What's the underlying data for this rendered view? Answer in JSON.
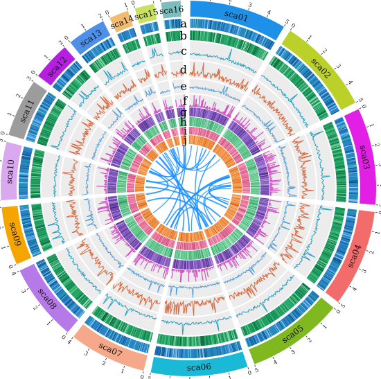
{
  "segments": [
    {
      "name": "sca01",
      "color": "#1E90E8",
      "max": 5
    },
    {
      "name": "sca02",
      "color": "#BCD02A",
      "max": 5
    },
    {
      "name": "sca03",
      "color": "#E21FE5",
      "max": 5
    },
    {
      "name": "sca04",
      "color": "#F26C6C",
      "max": 5
    },
    {
      "name": "sca05",
      "color": "#7FB81F",
      "max": 5
    },
    {
      "name": "sca06",
      "color": "#1AB9D6",
      "max": 5
    },
    {
      "name": "sca07",
      "color": "#F5A98A",
      "max": 4
    },
    {
      "name": "sca08",
      "color": "#B57AE8",
      "max": 4
    },
    {
      "name": "sca09",
      "color": "#F5A500",
      "max": 3
    },
    {
      "name": "sca10",
      "color": "#D9A8EE",
      "max": 3
    },
    {
      "name": "sca11",
      "color": "#9C9C9C",
      "max": 3
    },
    {
      "name": "sca12",
      "color": "#B51FE0",
      "max": 2
    },
    {
      "name": "sca13",
      "color": "#4E8FE8",
      "max": 2
    },
    {
      "name": "sca14",
      "color": "#F3BB6E",
      "max": 1
    },
    {
      "name": "sca15",
      "color": "#C9E060",
      "max": 1
    },
    {
      "name": "sca16",
      "color": "#7DBDBD",
      "max": 1
    }
  ],
  "track_letters": [
    "a",
    "b",
    "c",
    "d",
    "e",
    "f",
    "g",
    "h",
    "i",
    "j"
  ],
  "track_colors": {
    "a": "#1E8BC3",
    "b": "#21A366",
    "c": "#2A9FC1",
    "d": "#D6693F",
    "e": "#8B3FA8",
    "f": "#D054C4",
    "g": "#6A3FA8",
    "h": "#3FB87A",
    "i": "#E05A8A",
    "j": "#F07A20"
  },
  "link_color": "#1E90FF"
}
